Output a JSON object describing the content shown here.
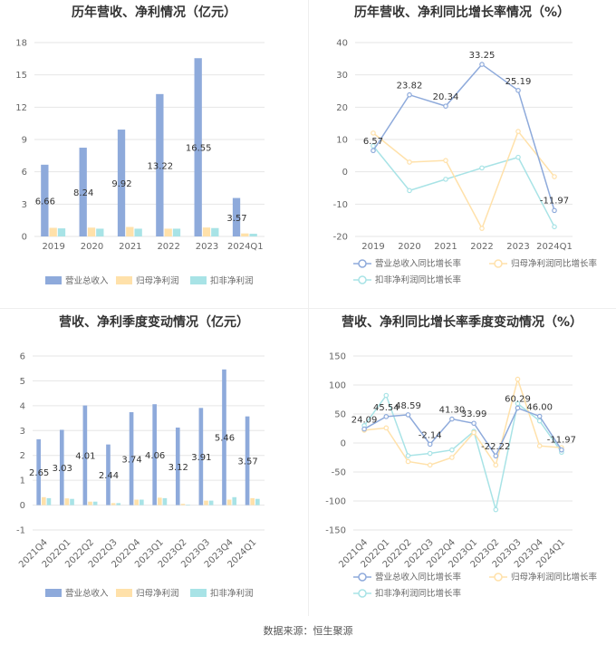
{
  "colors": {
    "c1": "#8eaadb",
    "c2": "#ffe1aa",
    "c3": "#a8e3e6",
    "grid": "#e6e6e6",
    "text": "#666666"
  },
  "source": "数据来源：恒生聚源",
  "chart_data": [
    {
      "type": "bar",
      "title": "历年营收、净利情况（亿元）",
      "categories": [
        "2019",
        "2020",
        "2021",
        "2022",
        "2023",
        "2024Q1"
      ],
      "yticks": [
        0,
        3,
        6,
        9,
        12,
        15,
        18
      ],
      "ylim": [
        0,
        18
      ],
      "grid": true,
      "legend_position": "bottom",
      "series": [
        {
          "name": "营业总收入",
          "values": [
            6.66,
            8.24,
            9.92,
            13.22,
            16.55,
            3.57
          ],
          "labels": [
            "6.66",
            "8.24",
            "9.92",
            "13.22",
            "16.55",
            "3.57"
          ]
        },
        {
          "name": "归母净利润",
          "values": [
            0.8,
            0.82,
            0.88,
            0.72,
            0.83,
            0.28
          ]
        },
        {
          "name": "扣非净利润",
          "values": [
            0.75,
            0.72,
            0.72,
            0.72,
            0.78,
            0.25
          ]
        }
      ]
    },
    {
      "type": "line",
      "title": "历年营收、净利同比增长率情况（%）",
      "categories": [
        "2019",
        "2020",
        "2021",
        "2022",
        "2023",
        "2024Q1"
      ],
      "yticks": [
        -20,
        -10,
        0,
        10,
        20,
        30,
        40
      ],
      "ylim": [
        -20,
        40
      ],
      "grid": true,
      "legend_position": "bottom",
      "series": [
        {
          "name": "营业总收入同比增长率",
          "values": [
            6.57,
            23.82,
            20.34,
            33.25,
            25.19,
            -11.97
          ],
          "labels": [
            "6.57",
            "23.82",
            "20.34",
            "33.25",
            "25.19",
            "-11.97"
          ]
        },
        {
          "name": "归母净利润同比增长率",
          "values": [
            12,
            3,
            3.5,
            -17.5,
            12.5,
            -1.5
          ]
        },
        {
          "name": "扣非净利润同比增长率",
          "values": [
            8,
            -5.8,
            -2.3,
            1.2,
            4.5,
            -17
          ]
        }
      ]
    },
    {
      "type": "bar",
      "title": "营收、净利季度变动情况（亿元）",
      "categories": [
        "2021Q4",
        "2022Q1",
        "2022Q2",
        "2022Q3",
        "2022Q4",
        "2023Q1",
        "2023Q2",
        "2023Q3",
        "2023Q4",
        "2024Q1"
      ],
      "yticks": [
        -1,
        0,
        1,
        2,
        3,
        4,
        5,
        6
      ],
      "ylim": [
        -1,
        6
      ],
      "grid": true,
      "legend_position": "bottom",
      "series": [
        {
          "name": "营业总收入",
          "values": [
            2.65,
            3.03,
            4.01,
            2.44,
            3.74,
            4.06,
            3.12,
            3.91,
            5.46,
            3.57
          ],
          "labels": [
            "2.65",
            "3.03",
            "4.01",
            "2.44",
            "3.74",
            "4.06",
            "3.12",
            "3.91",
            "5.46",
            "3.57"
          ]
        },
        {
          "name": "归母净利润",
          "values": [
            0.32,
            0.27,
            0.14,
            0.08,
            0.22,
            0.3,
            0.05,
            0.18,
            0.22,
            0.28
          ]
        },
        {
          "name": "扣非净利润",
          "values": [
            0.28,
            0.25,
            0.14,
            0.08,
            0.22,
            0.28,
            0.02,
            0.18,
            0.32,
            0.25
          ]
        }
      ]
    },
    {
      "type": "line",
      "title": "营收、净利同比增长率季度变动情况（%）",
      "categories": [
        "2021Q4",
        "2022Q1",
        "2022Q2",
        "2022Q3",
        "2022Q4",
        "2023Q1",
        "2023Q2",
        "2023Q3",
        "2023Q4",
        "2024Q1"
      ],
      "yticks": [
        -150,
        -100,
        -50,
        0,
        50,
        100,
        150
      ],
      "ylim": [
        -150,
        150
      ],
      "grid": true,
      "legend_position": "bottom",
      "series": [
        {
          "name": "营业总收入同比增长率",
          "values": [
            24.09,
            45.54,
            48.59,
            -2.14,
            41.3,
            33.99,
            -22.22,
            60.29,
            46.0,
            -11.97
          ],
          "labels": [
            "24.09",
            "45.54",
            "48.59",
            "-2.14",
            "41.30",
            "33.99",
            "-22.22",
            "60.29",
            "46.00",
            "-11.97"
          ]
        },
        {
          "name": "归母净利润同比增长率",
          "values": [
            22,
            26,
            -32,
            -38,
            -25,
            18,
            -38,
            110,
            -5,
            -8
          ]
        },
        {
          "name": "扣非净利润同比增长率",
          "values": [
            30,
            82,
            -22,
            -18,
            -12,
            20,
            -115,
            68,
            38,
            -16
          ]
        }
      ]
    }
  ]
}
